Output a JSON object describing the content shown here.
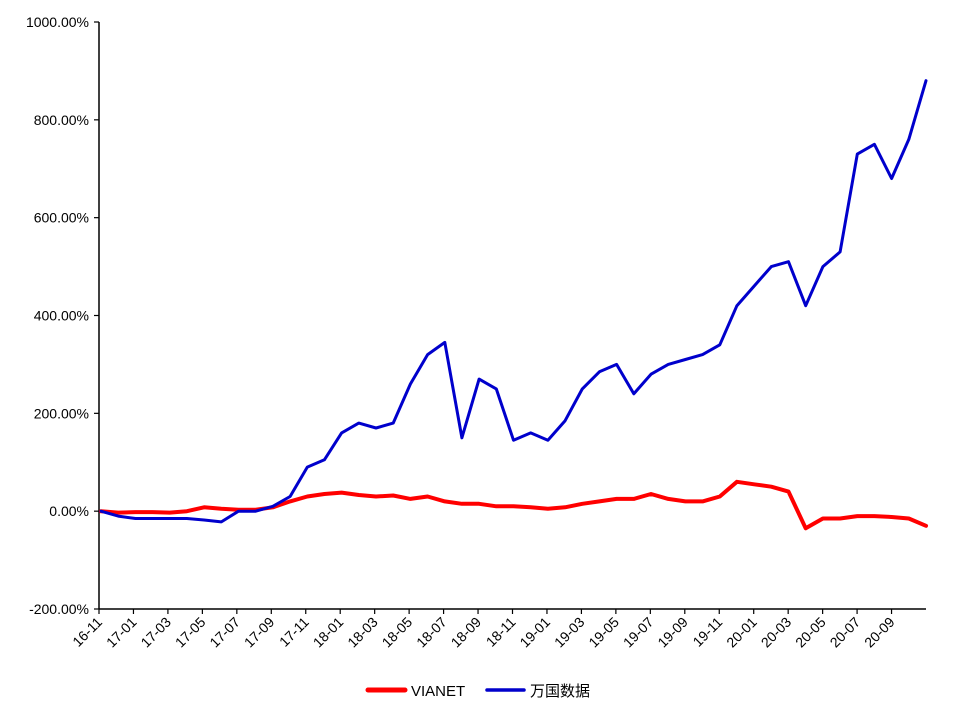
{
  "chart_data": {
    "type": "line",
    "title": "",
    "xlabel": "",
    "ylabel": "",
    "ylim": [
      -200,
      1000
    ],
    "y_unit": "%",
    "y_ticks": [
      "1000.00%",
      "800.00%",
      "600.00%",
      "400.00%",
      "200.00%",
      "0.00%",
      "-200.00%"
    ],
    "y_tick_values": [
      1000,
      800,
      600,
      400,
      200,
      0,
      -200
    ],
    "x_ticks": [
      "16-11",
      "17-01",
      "17-03",
      "17-05",
      "17-07",
      "17-09",
      "17-11",
      "18-01",
      "18-03",
      "18-05",
      "18-07",
      "18-09",
      "18-11",
      "19-01",
      "19-03",
      "19-05",
      "19-07",
      "19-09",
      "19-11",
      "20-01",
      "20-03",
      "20-05",
      "20-07",
      "20-09"
    ],
    "x": [
      "2016-11",
      "2016-12",
      "2017-01",
      "2017-02",
      "2017-03",
      "2017-04",
      "2017-05",
      "2017-06",
      "2017-07",
      "2017-08",
      "2017-09",
      "2017-10",
      "2017-11",
      "2017-12",
      "2018-01",
      "2018-02",
      "2018-03",
      "2018-04",
      "2018-05",
      "2018-06",
      "2018-07",
      "2018-08",
      "2018-09",
      "2018-10",
      "2018-11",
      "2018-12",
      "2019-01",
      "2019-02",
      "2019-03",
      "2019-04",
      "2019-05",
      "2019-06",
      "2019-07",
      "2019-08",
      "2019-09",
      "2019-10",
      "2019-11",
      "2019-12",
      "2020-01",
      "2020-02",
      "2020-03",
      "2020-04",
      "2020-05",
      "2020-06",
      "2020-07",
      "2020-08",
      "2020-09",
      "2020-10",
      "2020-11"
    ],
    "grid": false,
    "legend_position": "bottom",
    "series": [
      {
        "name": "VIANET",
        "color": "#ff0000",
        "values": [
          0,
          -3,
          -2,
          -2,
          -3,
          0,
          8,
          5,
          3,
          3,
          8,
          20,
          30,
          35,
          38,
          33,
          30,
          32,
          25,
          30,
          20,
          15,
          15,
          10,
          10,
          8,
          5,
          8,
          15,
          20,
          25,
          25,
          35,
          25,
          20,
          20,
          30,
          60,
          55,
          50,
          40,
          -35,
          -15,
          -15,
          -10,
          -10,
          -12,
          -15,
          -30
        ]
      },
      {
        "name": "万国数据",
        "color": "#0000cc",
        "values": [
          0,
          -10,
          -15,
          -15,
          -15,
          -15,
          -18,
          -22,
          0,
          0,
          10,
          30,
          90,
          105,
          160,
          180,
          170,
          180,
          260,
          320,
          345,
          150,
          270,
          250,
          145,
          160,
          145,
          185,
          250,
          285,
          300,
          240,
          280,
          300,
          310,
          320,
          340,
          420,
          460,
          500,
          510,
          420,
          500,
          530,
          730,
          750,
          680,
          760,
          880
        ]
      }
    ]
  }
}
